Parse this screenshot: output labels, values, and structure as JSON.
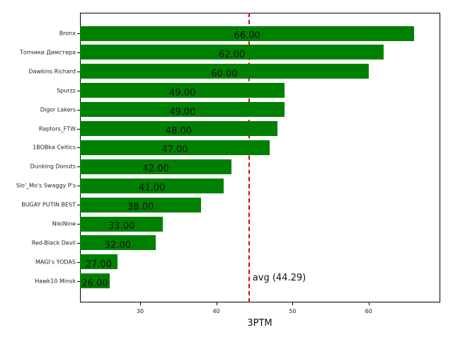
{
  "chart_data": {
    "type": "bar",
    "orientation": "horizontal",
    "title": "",
    "xlabel": "3PTM",
    "ylabel": "",
    "xlim": [
      22.1,
      69.4
    ],
    "xticks": [
      30,
      40,
      50,
      60
    ],
    "grid": false,
    "bar_color": "#008000",
    "categories": [
      "Bronx",
      "Топчики Димстера",
      "Dawkins Richard",
      "Spurzz",
      "Digor Lakers",
      "Raptors_FTW",
      "1BOBka Celtics",
      "Dunking Donuts",
      "Slo'_Mo's Swaggy P's",
      "BUGAY PUTIN BEST",
      "NikiNine",
      "Red-Black Devil",
      "MAGI's YODAS",
      "Hawk10 Minsk"
    ],
    "values": [
      66,
      62,
      60,
      49,
      49,
      48,
      47,
      42,
      41,
      38,
      33,
      32,
      27,
      26
    ],
    "value_labels": [
      "66.00",
      "62.00",
      "60.00",
      "49.00",
      "49.00",
      "48.00",
      "47.00",
      "42.00",
      "41.00",
      "38.00",
      "33.00",
      "32.00",
      "27.00",
      "26.00"
    ],
    "reference_line": {
      "value": 44.29,
      "label": "avg (44.29)",
      "color": "#e00000",
      "style": "dashed"
    }
  }
}
